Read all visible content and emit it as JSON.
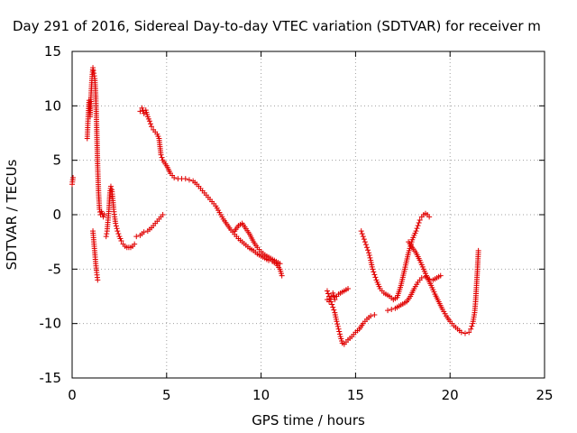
{
  "chart_data": {
    "type": "scatter",
    "title": "Day 291 of 2016, Sidereal Day-to-day VTEC variation (SDTVAR) for receiver m",
    "xlabel": "GPS time / hours",
    "ylabel": "SDTVAR / TECUs",
    "xlim": [
      0,
      25
    ],
    "ylim": [
      -15,
      15
    ],
    "xticks": [
      0,
      5,
      10,
      15,
      20,
      25
    ],
    "yticks": [
      -15,
      -10,
      -5,
      0,
      5,
      10,
      15
    ],
    "grid": true,
    "marker": "plus",
    "color": "#e00000",
    "series": [
      {
        "x": [
          0.0,
          0.05
        ],
        "y": [
          2.8,
          3.4
        ]
      },
      {
        "x": [
          0.8,
          0.85,
          0.9,
          0.95,
          1.0,
          1.05,
          1.1,
          1.15,
          1.2,
          1.25,
          1.3,
          1.35,
          1.4,
          1.45,
          1.5,
          1.55,
          1.6,
          1.65,
          1.7
        ],
        "y": [
          7.0,
          9.0,
          10.5,
          9.0,
          11.0,
          12.5,
          13.5,
          13.0,
          12.5,
          11.0,
          8.0,
          4.5,
          2.0,
          0.5,
          0.0,
          0.3,
          0.1,
          -0.2,
          0.0
        ]
      },
      {
        "x": [
          1.1,
          1.15,
          1.2,
          1.25,
          1.3,
          1.35
        ],
        "y": [
          -1.5,
          -2.5,
          -3.5,
          -4.5,
          -5.3,
          -6.0
        ]
      },
      {
        "x": [
          1.8,
          1.85,
          1.9,
          1.95,
          2.0,
          2.05,
          2.1,
          2.15,
          2.2,
          2.25,
          2.3,
          2.4,
          2.5,
          2.6,
          2.7,
          2.8,
          2.9,
          3.0,
          3.1,
          3.2,
          3.3
        ],
        "y": [
          -2.0,
          -1.5,
          -0.5,
          0.5,
          2.0,
          2.6,
          2.3,
          1.5,
          0.5,
          -0.2,
          -0.8,
          -1.5,
          -2.0,
          -2.4,
          -2.7,
          -2.9,
          -3.0,
          -3.0,
          -3.0,
          -2.9,
          -2.7
        ]
      },
      {
        "x": [
          3.4,
          3.6,
          3.8,
          4.0,
          4.2,
          4.4,
          4.6,
          4.8
        ],
        "y": [
          -2.0,
          -1.9,
          -1.6,
          -1.5,
          -1.2,
          -0.8,
          -0.4,
          0.0
        ]
      },
      {
        "x": [
          3.6,
          3.7,
          3.8,
          3.9,
          4.0,
          4.1,
          4.2,
          4.3,
          4.4,
          4.5,
          4.6,
          4.7,
          4.8,
          5.0,
          5.2,
          5.4,
          5.6,
          5.8,
          6.0,
          6.2,
          6.4,
          6.6,
          6.8,
          7.0,
          7.2,
          7.4,
          7.6,
          7.8,
          8.0,
          8.2,
          8.4,
          8.6,
          8.8,
          9.0,
          9.2,
          9.4,
          9.6,
          9.8,
          10.0,
          10.2,
          10.4,
          10.6,
          10.8,
          11.0,
          11.1
        ],
        "y": [
          9.5,
          9.8,
          9.3,
          9.6,
          9.0,
          8.6,
          8.1,
          7.8,
          7.6,
          7.4,
          7.0,
          5.5,
          5.0,
          4.5,
          3.8,
          3.4,
          3.3,
          3.3,
          3.3,
          3.2,
          3.1,
          2.8,
          2.4,
          2.0,
          1.6,
          1.2,
          0.8,
          0.2,
          -0.4,
          -0.9,
          -1.4,
          -1.8,
          -2.2,
          -2.5,
          -2.8,
          -3.1,
          -3.3,
          -3.6,
          -3.8,
          -4.0,
          -4.2,
          -4.3,
          -4.5,
          -5.0,
          -5.6
        ]
      },
      {
        "x": [
          8.6,
          8.8,
          9.0,
          9.2,
          9.4,
          9.6,
          9.8,
          10.0,
          10.2,
          10.4,
          10.6,
          10.8,
          11.0
        ],
        "y": [
          -1.5,
          -1.0,
          -0.8,
          -1.3,
          -1.8,
          -2.5,
          -3.0,
          -3.4,
          -3.7,
          -3.9,
          -4.1,
          -4.3,
          -4.5
        ]
      },
      {
        "x": [
          13.5,
          13.6,
          13.7,
          13.8,
          13.9,
          14.0,
          14.1,
          14.2,
          14.3
        ],
        "y": [
          -7.0,
          -7.5,
          -8.0,
          -8.5,
          -9.0,
          -9.8,
          -10.5,
          -11.2,
          -11.8
        ]
      },
      {
        "x": [
          13.5,
          13.6,
          13.7,
          13.8,
          13.9,
          14.0,
          14.1,
          14.2,
          14.3,
          14.4,
          14.5,
          14.6
        ],
        "y": [
          -7.8,
          -8.0,
          -7.5,
          -7.2,
          -7.8,
          -7.5,
          -7.3,
          -7.2,
          -7.1,
          -7.0,
          -6.9,
          -6.8
        ]
      },
      {
        "x": [
          14.4,
          14.6,
          14.8,
          15.0,
          15.2,
          15.4,
          15.6,
          15.8,
          16.0
        ],
        "y": [
          -11.9,
          -11.5,
          -11.2,
          -10.8,
          -10.5,
          -10.0,
          -9.6,
          -9.3,
          -9.2
        ]
      },
      {
        "x": [
          15.3,
          15.4,
          15.5,
          15.6,
          15.7,
          15.8,
          15.9,
          16.0,
          16.1,
          16.2,
          16.3,
          16.4,
          16.5,
          16.6,
          16.8,
          17.0,
          17.2,
          17.4,
          17.6,
          17.8,
          18.0,
          18.2,
          18.3,
          18.4,
          18.5,
          18.6,
          18.7,
          18.8,
          18.9
        ],
        "y": [
          -1.5,
          -2.0,
          -2.5,
          -3.0,
          -3.5,
          -4.2,
          -5.0,
          -5.5,
          -6.0,
          -6.4,
          -6.8,
          -7.0,
          -7.2,
          -7.3,
          -7.5,
          -7.8,
          -7.6,
          -6.5,
          -5.0,
          -3.5,
          -2.3,
          -1.5,
          -1.0,
          -0.5,
          -0.2,
          0.0,
          0.1,
          0.0,
          -0.2
        ]
      },
      {
        "x": [
          16.7,
          16.9,
          17.1,
          17.3,
          17.5,
          17.7,
          17.9,
          18.1,
          18.3,
          18.5,
          18.7,
          18.9,
          19.1,
          19.3,
          19.5
        ],
        "y": [
          -8.8,
          -8.7,
          -8.6,
          -8.4,
          -8.2,
          -8.0,
          -7.5,
          -6.8,
          -6.2,
          -5.8,
          -5.7,
          -5.9,
          -6.0,
          -5.8,
          -5.6
        ]
      },
      {
        "x": [
          17.8,
          18.0,
          18.2,
          18.4,
          18.6,
          18.8,
          19.0,
          19.2,
          19.4,
          19.6,
          19.8,
          20.0,
          20.2,
          20.4,
          20.6,
          20.8,
          21.0,
          21.1,
          21.2,
          21.3,
          21.35,
          21.4,
          21.45,
          21.5
        ],
        "y": [
          -2.5,
          -3.0,
          -3.5,
          -4.2,
          -5.0,
          -5.8,
          -6.5,
          -7.3,
          -8.0,
          -8.7,
          -9.3,
          -9.8,
          -10.2,
          -10.5,
          -10.8,
          -10.9,
          -10.8,
          -10.5,
          -10.0,
          -9.0,
          -8.0,
          -6.5,
          -5.0,
          -3.3
        ]
      }
    ]
  }
}
